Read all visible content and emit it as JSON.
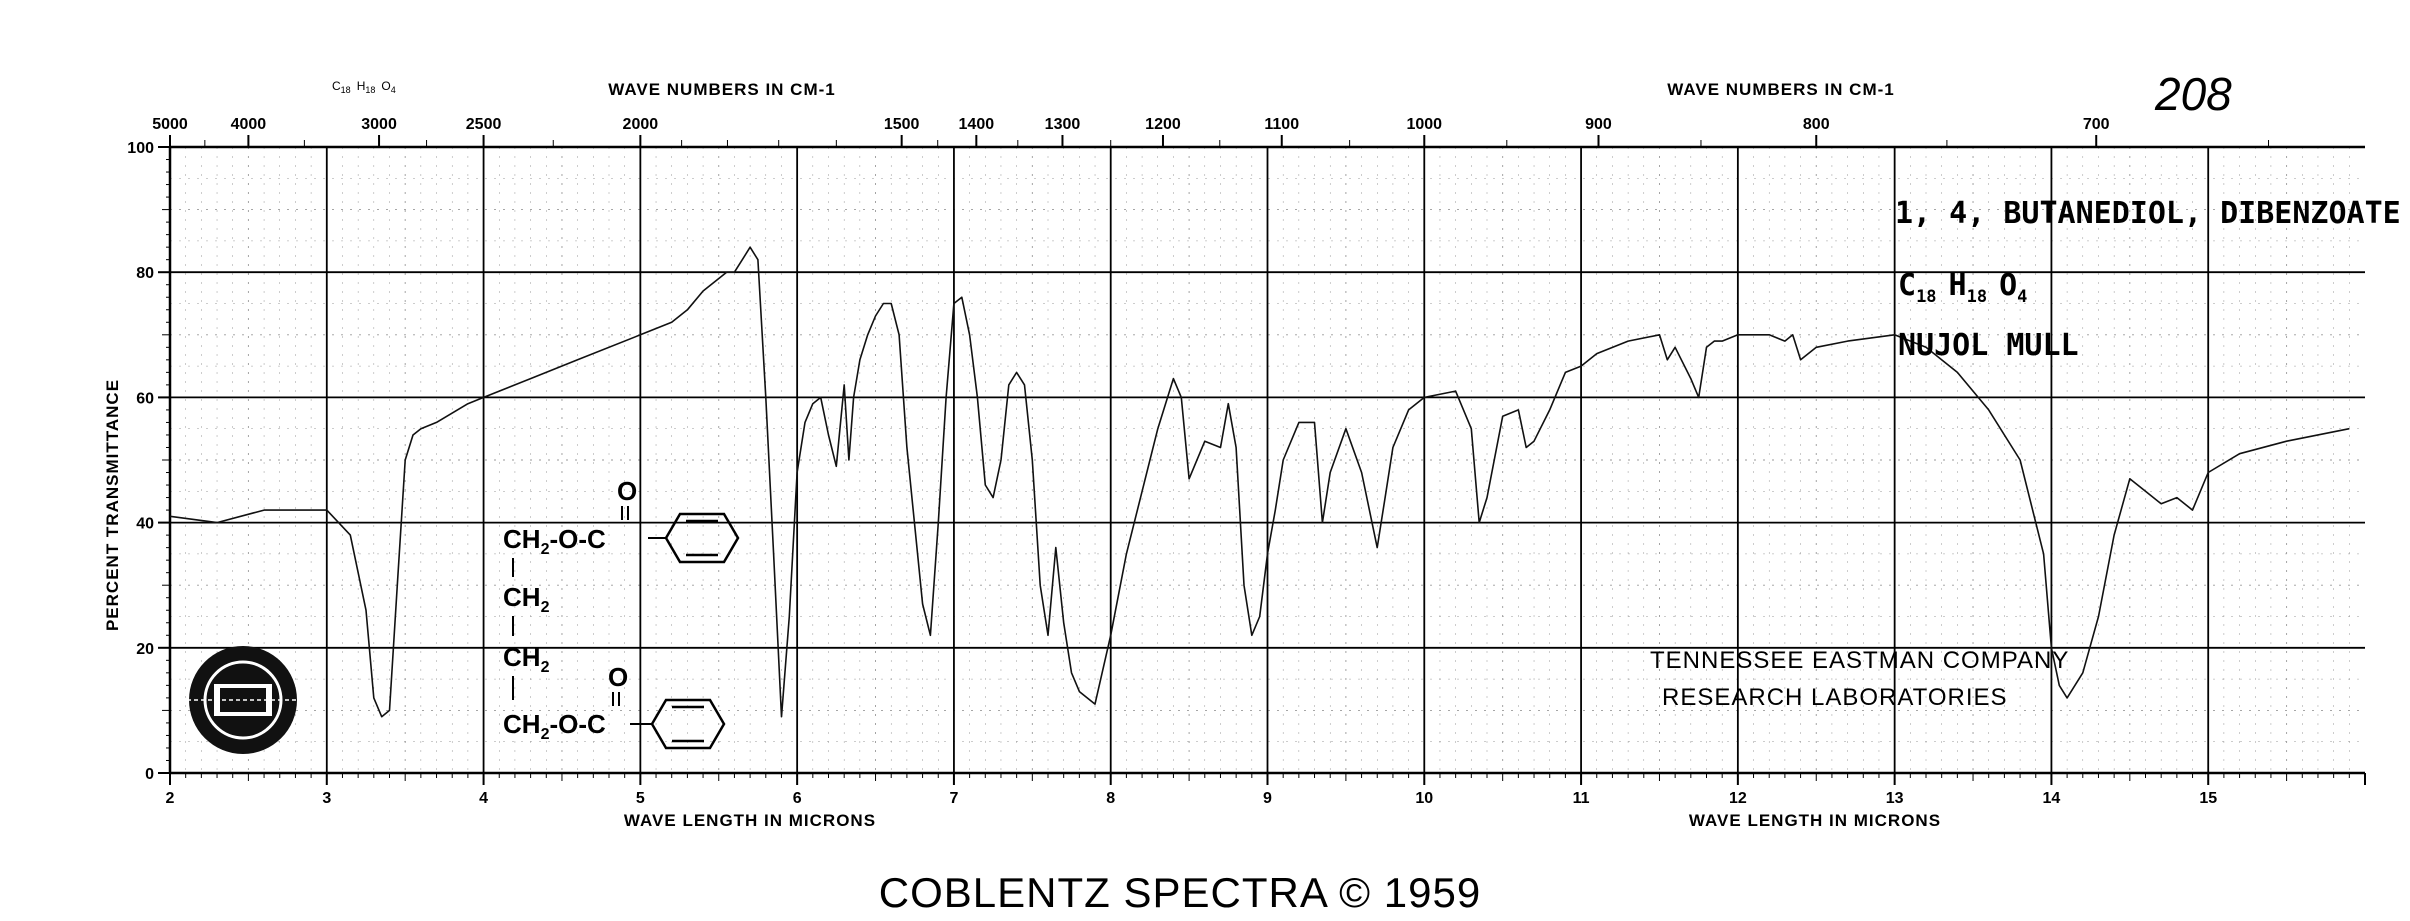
{
  "chart_data": {
    "type": "line",
    "title": "1, 4, BUTANEDIOL, DIBENZOATE",
    "formula_main": "C18 H18 O4",
    "formula_main_parts": {
      "c": "C",
      "c_sub": "18",
      "h": "H",
      "h_sub": "18",
      "o": "O",
      "o_sub": "4"
    },
    "formula_small": "C18 H18 O4",
    "formula_small_parts": {
      "c": "C",
      "c_sub": "18",
      "h": "H",
      "h_sub": "18",
      "o": "O",
      "o_sub": "4"
    },
    "sample_prep": "NUJOL MULL",
    "spectrum_number": "208",
    "ylabel": "PERCENT TRANSMITTANCE",
    "xlabel_bottom": "WAVE LENGTH IN MICRONS",
    "xlabel_top": "WAVE NUMBERS IN CM-1",
    "ylim": [
      0,
      100
    ],
    "xlim_microns": [
      2,
      16
    ],
    "y_ticks": [
      "0",
      "20",
      "40",
      "60",
      "80",
      "100"
    ],
    "x_ticks_bottom": [
      "2",
      "3",
      "4",
      "5",
      "6",
      "7",
      "8",
      "9",
      "10",
      "11",
      "12",
      "13",
      "14",
      "15"
    ],
    "x_ticks_top": [
      "5000",
      "4000",
      "3000",
      "2500",
      "2000",
      "1500",
      "1400",
      "1300",
      "1200",
      "1100",
      "1000",
      "900",
      "800",
      "700"
    ],
    "series": [
      {
        "x": [
          2.0,
          2.3,
          2.6,
          2.9,
          3.0,
          3.15,
          3.25,
          3.3,
          3.35,
          3.4,
          3.45,
          3.5,
          3.55,
          3.6,
          3.7,
          3.9,
          4.0,
          4.3,
          4.6,
          5.0,
          5.2,
          5.3,
          5.4,
          5.5,
          5.55,
          5.6,
          5.65,
          5.7,
          5.75,
          5.8,
          5.85,
          5.9,
          5.95,
          6.0,
          6.05,
          6.1,
          6.15,
          6.2,
          6.25,
          6.3,
          6.33,
          6.36,
          6.4,
          6.45,
          6.5,
          6.55,
          6.6,
          6.65,
          6.7,
          6.8,
          6.85,
          6.9,
          6.95,
          7.0,
          7.05,
          7.1,
          7.15,
          7.2,
          7.25,
          7.3,
          7.35,
          7.4,
          7.45,
          7.5,
          7.55,
          7.6,
          7.65,
          7.7,
          7.75,
          7.8,
          7.85,
          7.9,
          8.0,
          8.1,
          8.2,
          8.3,
          8.4,
          8.45,
          8.5,
          8.6,
          8.7,
          8.75,
          8.8,
          8.85,
          8.9,
          8.95,
          9.0,
          9.05,
          9.1,
          9.2,
          9.3,
          9.35,
          9.4,
          9.5,
          9.6,
          9.7,
          9.75,
          9.8,
          9.9,
          10.0,
          10.2,
          10.3,
          10.35,
          10.4,
          10.5,
          10.6,
          10.65,
          10.7,
          10.8,
          10.9,
          11.0,
          11.1,
          11.3,
          11.5,
          11.55,
          11.6,
          11.7,
          11.75,
          11.8,
          11.85,
          11.9,
          12.0,
          12.1,
          12.2,
          12.3,
          12.35,
          12.4,
          12.5,
          12.7,
          13.0,
          13.2,
          13.4,
          13.6,
          13.8,
          13.95,
          14.0,
          14.05,
          14.1,
          14.2,
          14.3,
          14.4,
          14.5,
          14.6,
          14.7,
          14.8,
          14.9,
          15.0,
          15.2,
          15.5,
          15.9
        ],
        "y": [
          41,
          40,
          42,
          42,
          42,
          38,
          26,
          12,
          9,
          10,
          30,
          50,
          54,
          55,
          56,
          59,
          60,
          63,
          66,
          70,
          72,
          74,
          77,
          79,
          80,
          80,
          82,
          84,
          82,
          60,
          35,
          9,
          25,
          48,
          56,
          59,
          60,
          54,
          49,
          62,
          50,
          60,
          66,
          70,
          73,
          75,
          75,
          70,
          52,
          27,
          22,
          40,
          60,
          75,
          76,
          70,
          60,
          46,
          44,
          50,
          62,
          64,
          62,
          50,
          30,
          22,
          36,
          24,
          16,
          13,
          12,
          11,
          22,
          35,
          45,
          55,
          63,
          60,
          47,
          53,
          52,
          59,
          52,
          30,
          22,
          25,
          35,
          42,
          50,
          56,
          56,
          40,
          48,
          55,
          48,
          36,
          44,
          52,
          58,
          60,
          61,
          55,
          40,
          44,
          57,
          58,
          52,
          53,
          58,
          64,
          65,
          67,
          69,
          70,
          66,
          68,
          63,
          60,
          68,
          69,
          69,
          70,
          70,
          70,
          69,
          70,
          66,
          68,
          69,
          70,
          68,
          64,
          58,
          50,
          35,
          20,
          14,
          12,
          16,
          25,
          38,
          47,
          45,
          43,
          44,
          42,
          48,
          51,
          53,
          55
        ]
      }
    ],
    "legend": "none",
    "grid": true
  },
  "structure": {
    "oxygen_top": "O",
    "row1": "CH2-O-C",
    "row2": "CH2",
    "row3": "CH2",
    "oxygen_bottom": "O",
    "row4": "CH2-O-C",
    "row1_parts": {
      "ch": "CH",
      "sub": "2",
      "rest": "-O-C"
    },
    "row2_parts": {
      "ch": "CH",
      "sub": "2"
    },
    "row3_parts": {
      "ch": "CH",
      "sub": "2"
    },
    "row4_parts": {
      "ch": "CH",
      "sub": "2",
      "rest": "-O-C"
    }
  },
  "stamp": {
    "line1": "TENNESSEE EASTMAN COMPANY",
    "line2": "RESEARCH LABORATORIES"
  },
  "footer": "COBLENTZ SPECTRA © 1959"
}
